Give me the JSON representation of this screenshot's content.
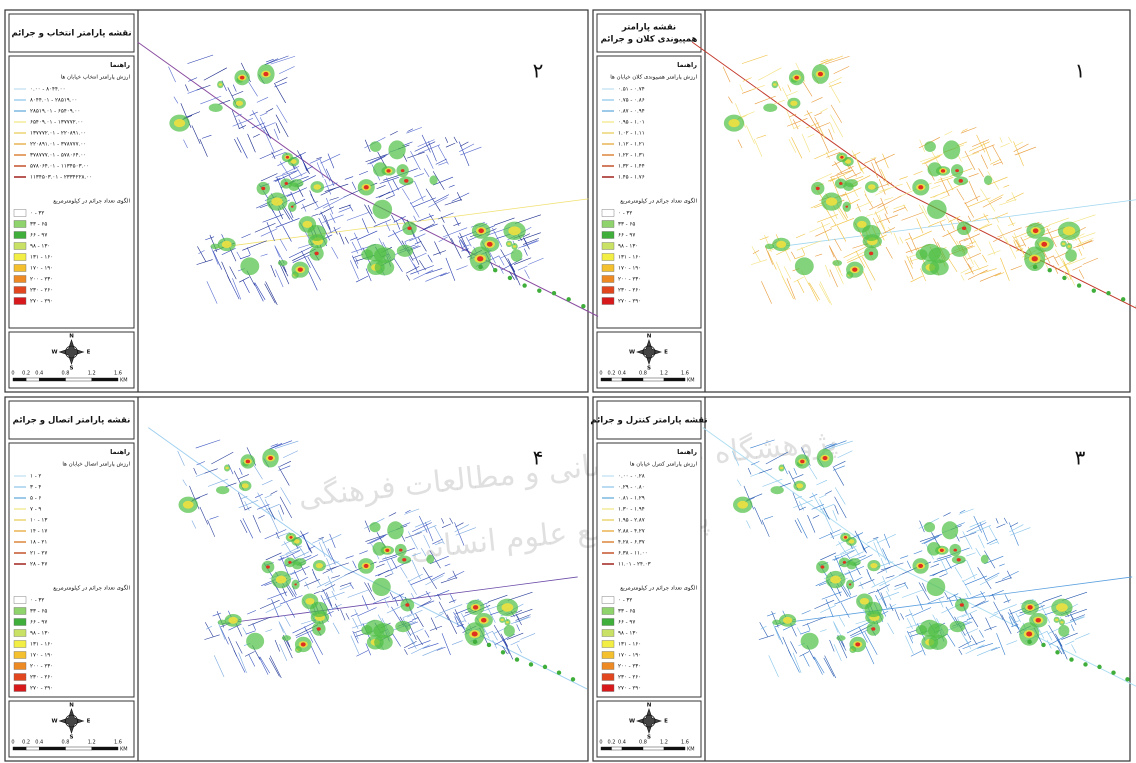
{
  "watermark": {
    "line1": "پژوهشگاه علوم انسانی و مطالعات فرهنگی",
    "line2": "پرتال جامع علوم انسانی"
  },
  "legend_heading": "راهنما",
  "crime_legend": {
    "title": "الگوی تعداد جرائم در کیلومترمربع",
    "classes": [
      "۰ - ۳۲",
      "۳۳ - ۶۵",
      "۶۶ - ۹۷",
      "۹۸ - ۱۳۰",
      "۱۳۱ - ۱۶۰",
      "۱۷۰ - ۱۹۰",
      "۲۰۰ - ۲۳۰",
      "۲۳۰ - ۲۶۰",
      "۲۷۰ - ۲۹۰"
    ]
  },
  "compass": {
    "n": "N",
    "e": "E",
    "s": "S",
    "w": "W"
  },
  "scale": [
    "0",
    "0.2",
    "0.4",
    "0.8",
    "1.2",
    "1.6",
    "KM"
  ],
  "panels": [
    {
      "map_number": "۱",
      "title_lines": [
        "نقشه پارامتر",
        "همپیوندی کلان و جرائم"
      ],
      "street_title": "ارزش پارامتر همپیوندی کلان خیابان ها",
      "street_classes": [
        "۰.۵۱ - ۰.۷۴",
        "۰.۷۵ - ۰.۸۶",
        "۰.۸۷ - ۰.۹۴",
        "۰.۹۵ - ۱.۰۱",
        "۱.۰۲ - ۱.۱۱",
        "۱.۱۲ - ۱.۲۱",
        "۱.۲۲ - ۱.۳۱",
        "۱.۳۲ - ۱.۴۴",
        "۱.۴۵ - ۱.۷۶"
      ]
    },
    {
      "map_number": "۲",
      "title_lines": [
        "نقشه پارامتر انتخاب و جرائم"
      ],
      "street_title": "ارزش پارامتر انتخاب خیابان ها",
      "street_classes": [
        "۰.۰۰ - ۸۰۴۴.۰۰",
        "۸۰۴۴.۰۱ - ۲۸۵۱۹.۰۰",
        "۲۸۵۱۹.۰۱ - ۶۵۴۰۹.۰۰",
        "۶۵۴۰۹.۰۱ - ۱۳۷۷۷۲.۰۰",
        "۱۳۷۷۷۲.۰۱ - ۲۲۰۸۹۱.۰۰",
        "۲۲۰۸۹۱.۰۱ - ۳۷۸۷۷۷.۰۰",
        "۳۷۸۷۷۷.۰۱ - ۵۷۸۰۶۴.۰۰",
        "۵۷۸۰۶۴.۰۱ - ۱۱۳۴۵۰۳.۰۰",
        "۱۱۳۴۵۰۳.۰۱ - ۲۳۳۴۲۲۸.۰۰"
      ]
    },
    {
      "map_number": "۳",
      "title_lines": [
        "نقشه پارامتر کنترل و جرائم"
      ],
      "street_title": "ارزش پارامتر کنترل خیابان ها",
      "street_classes": [
        "۰.۰۰ - ۰.۲۸",
        "۰.۲۹ - ۰.۸۰",
        "۰.۸۱ - ۱.۲۹",
        "۱.۳۰ - ۱.۹۴",
        "۱.۹۵ - ۲.۸۷",
        "۲.۸۸ - ۴.۲۷",
        "۴.۲۸ - ۶.۳۷",
        "۶.۳۸ - ۱۱.۰۰",
        "۱۱.۰۱ - ۲۴.۰۳"
      ]
    },
    {
      "map_number": "۴",
      "title_lines": [
        "نقشه پارامتر اتصال و جرائم"
      ],
      "street_title": "ارزش پارامتر اتصال خیابان ها",
      "street_classes": [
        "۱ - ۲",
        "۳ - ۴",
        "۵ - ۶",
        "۷ - ۹",
        "۱۰ - ۱۳",
        "۱۴ - ۱۷",
        "۱۸ - ۲۱",
        "۲۱ - ۲۷",
        "۲۸ - ۴۷"
      ]
    }
  ]
}
